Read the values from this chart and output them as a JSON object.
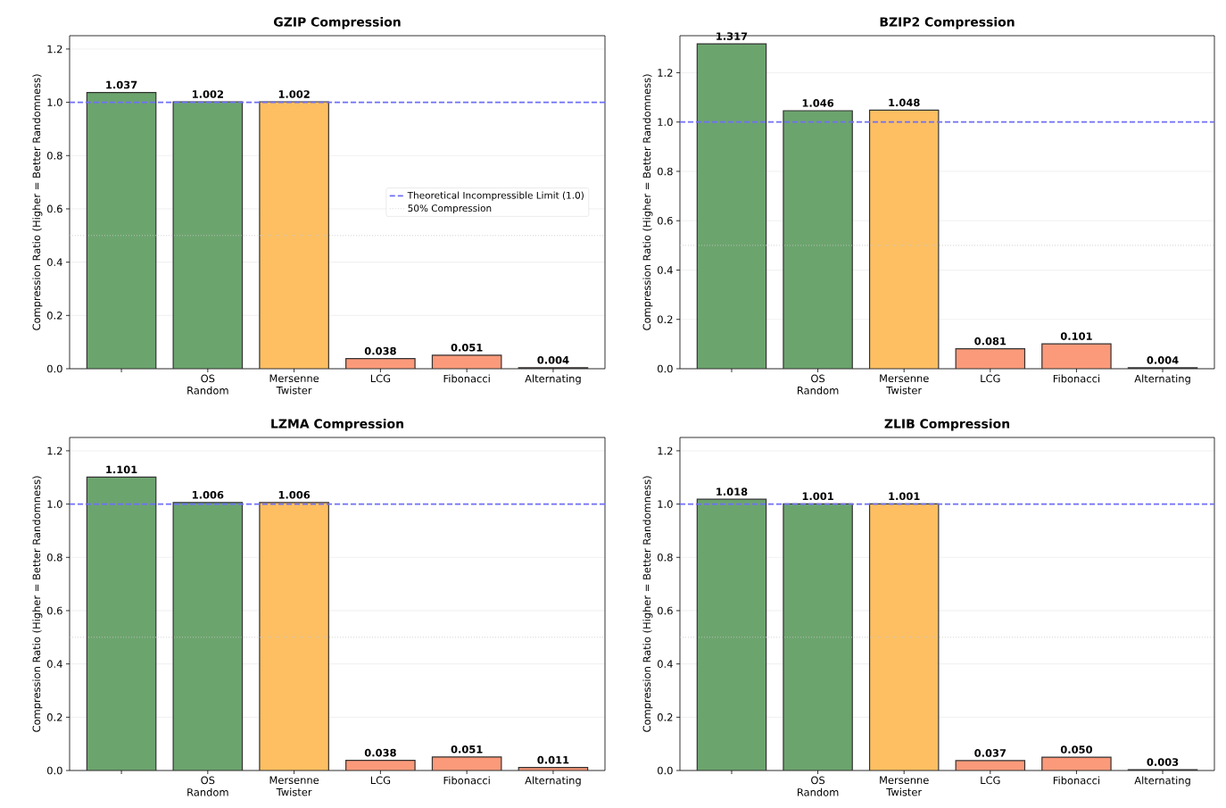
{
  "chart_data": [
    {
      "type": "bar",
      "title": "GZIP Compression",
      "ylabel": "Compression Ratio (Higher = Better Randomness)",
      "categories": [
        null,
        "OS Random",
        "Mersenne Twister",
        "LCG",
        "Fibonacci",
        "Alternating"
      ],
      "values": [
        1.037,
        1.002,
        1.002,
        0.038,
        0.051,
        0.004
      ],
      "value_labels": [
        "1.037",
        "1.002",
        "1.002",
        "0.038",
        "0.051",
        "0.004"
      ],
      "colors": [
        "#6ca46e",
        "#6ca46e",
        "#fdbf62",
        "#fb9a7a",
        "#fb9a7a",
        "#fb9a7a"
      ],
      "ylim": [
        0,
        1.25
      ],
      "yticks": [
        {
          "value": 0,
          "label": "0.0"
        },
        {
          "value": 0.2,
          "label": "0.2"
        },
        {
          "value": 0.4,
          "label": "0.4"
        },
        {
          "value": 0.6,
          "label": "0.6"
        },
        {
          "value": 0.8,
          "label": "0.8"
        },
        {
          "value": 1.0,
          "label": "1.0"
        },
        {
          "value": 1.2,
          "label": "1.2"
        }
      ],
      "grid": "y",
      "legend": "right",
      "ref_lines": [
        {
          "axis": "y",
          "value": 1.0,
          "label": "Theoretical Incompressible Limit (1.0)",
          "color": "#6f6ff5",
          "line_style": "dashed"
        },
        {
          "axis": "y",
          "value": 0.5,
          "label": "50% Compression",
          "color": "#c8c8c8",
          "line_style": "dotted"
        }
      ]
    },
    {
      "type": "bar",
      "title": "BZIP2 Compression",
      "ylabel": "Compression Ratio (Higher = Better Randomness)",
      "categories": [
        null,
        "OS Random",
        "Mersenne Twister",
        "LCG",
        "Fibonacci",
        "Alternating"
      ],
      "values": [
        1.317,
        1.046,
        1.048,
        0.081,
        0.101,
        0.004
      ],
      "value_labels": [
        "1.317",
        "1.046",
        "1.048",
        "0.081",
        "0.101",
        "0.004"
      ],
      "colors": [
        "#6ca46e",
        "#6ca46e",
        "#fdbf62",
        "#fb9a7a",
        "#fb9a7a",
        "#fb9a7a"
      ],
      "ylim": [
        0,
        1.35
      ],
      "yticks": [
        {
          "value": 0,
          "label": "0.0"
        },
        {
          "value": 0.2,
          "label": "0.2"
        },
        {
          "value": 0.4,
          "label": "0.4"
        },
        {
          "value": 0.6,
          "label": "0.6"
        },
        {
          "value": 0.8,
          "label": "0.8"
        },
        {
          "value": 1.0,
          "label": "1.0"
        },
        {
          "value": 1.2,
          "label": "1.2"
        }
      ],
      "grid": "y",
      "ref_lines": [
        {
          "axis": "y",
          "value": 1.0,
          "color": "#6f6ff5",
          "line_style": "dashed"
        },
        {
          "axis": "y",
          "value": 0.5,
          "color": "#c8c8c8",
          "line_style": "dotted"
        }
      ]
    },
    {
      "type": "bar",
      "title": "LZMA Compression",
      "ylabel": "Compression Ratio (Higher = Better Randomness)",
      "categories": [
        null,
        "OS Random",
        "Mersenne Twister",
        "LCG",
        "Fibonacci",
        "Alternating"
      ],
      "values": [
        1.101,
        1.006,
        1.006,
        0.038,
        0.051,
        0.011
      ],
      "value_labels": [
        "1.101",
        "1.006",
        "1.006",
        "0.038",
        "0.051",
        "0.011"
      ],
      "colors": [
        "#6ca46e",
        "#6ca46e",
        "#fdbf62",
        "#fb9a7a",
        "#fb9a7a",
        "#fb9a7a"
      ],
      "ylim": [
        0,
        1.25
      ],
      "yticks": [
        {
          "value": 0,
          "label": "0.0"
        },
        {
          "value": 0.2,
          "label": "0.2"
        },
        {
          "value": 0.4,
          "label": "0.4"
        },
        {
          "value": 0.6,
          "label": "0.6"
        },
        {
          "value": 0.8,
          "label": "0.8"
        },
        {
          "value": 1.0,
          "label": "1.0"
        },
        {
          "value": 1.2,
          "label": "1.2"
        }
      ],
      "grid": "y",
      "ref_lines": [
        {
          "axis": "y",
          "value": 1.0,
          "color": "#6f6ff5",
          "line_style": "dashed"
        },
        {
          "axis": "y",
          "value": 0.5,
          "color": "#c8c8c8",
          "line_style": "dotted"
        }
      ]
    },
    {
      "type": "bar",
      "title": "ZLIB Compression",
      "ylabel": "Compression Ratio (Higher = Better Randomness)",
      "categories": [
        null,
        "OS Random",
        "Mersenne Twister",
        "LCG",
        "Fibonacci",
        "Alternating"
      ],
      "values": [
        1.018,
        1.001,
        1.001,
        0.037,
        0.05,
        0.003
      ],
      "value_labels": [
        "1.018",
        "1.001",
        "1.001",
        "0.037",
        "0.050",
        "0.003"
      ],
      "colors": [
        "#6ca46e",
        "#6ca46e",
        "#fdbf62",
        "#fb9a7a",
        "#fb9a7a",
        "#fb9a7a"
      ],
      "ylim": [
        0,
        1.25
      ],
      "yticks": [
        {
          "value": 0,
          "label": "0.0"
        },
        {
          "value": 0.2,
          "label": "0.2"
        },
        {
          "value": 0.4,
          "label": "0.4"
        },
        {
          "value": 0.6,
          "label": "0.6"
        },
        {
          "value": 0.8,
          "label": "0.8"
        },
        {
          "value": 1.0,
          "label": "1.0"
        },
        {
          "value": 1.2,
          "label": "1.2"
        }
      ],
      "grid": "y",
      "ref_lines": [
        {
          "axis": "y",
          "value": 1.0,
          "color": "#6f6ff5",
          "line_style": "dashed"
        },
        {
          "axis": "y",
          "value": 0.5,
          "color": "#c8c8c8",
          "line_style": "dotted"
        }
      ]
    }
  ]
}
